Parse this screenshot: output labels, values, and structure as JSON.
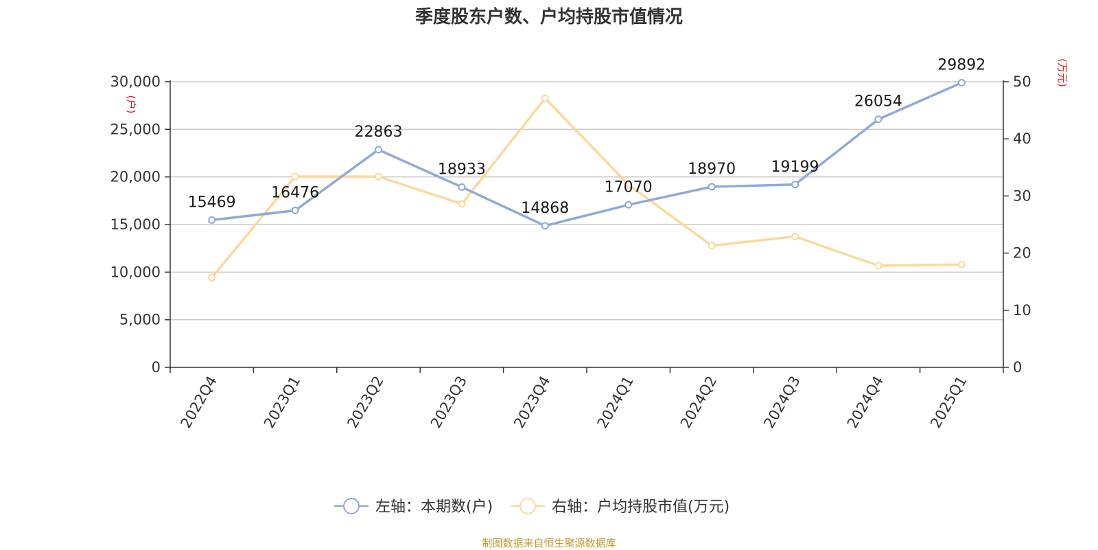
{
  "chart_data": {
    "type": "line",
    "title": "季度股东户数、户均持股市值情况",
    "categories": [
      "2022Q4",
      "2023Q1",
      "2023Q2",
      "2023Q3",
      "2023Q4",
      "2024Q1",
      "2024Q2",
      "2024Q3",
      "2024Q4",
      "2025Q1"
    ],
    "left_axis": {
      "unit": "(户)",
      "ylim": [
        0,
        30000
      ],
      "ticks": [
        0,
        5000,
        10000,
        15000,
        20000,
        25000,
        30000
      ],
      "tick_labels": [
        "0",
        "5,000",
        "10,000",
        "15,000",
        "20,000",
        "25,000",
        "30,000"
      ]
    },
    "right_axis": {
      "unit": "(万元)",
      "ylim": [
        0,
        50
      ],
      "ticks": [
        0,
        10,
        20,
        30,
        40,
        50
      ],
      "tick_labels": [
        "0",
        "10",
        "20",
        "30",
        "40",
        "50"
      ]
    },
    "series": [
      {
        "name": "左轴：本期数(户)",
        "axis": "left",
        "color": "#8eaad8",
        "values": [
          15469,
          16476,
          22863,
          18933,
          14868,
          17070,
          18970,
          19199,
          26054,
          29892
        ],
        "labels": [
          "15469",
          "16476",
          "22863",
          "18933",
          "14868",
          "17070",
          "18970",
          "19199",
          "26054",
          "29892"
        ]
      },
      {
        "name": "右轴：户均持股市值(万元)",
        "axis": "right",
        "color": "#fcd89a",
        "values": [
          15.7,
          33.4,
          33.4,
          28.6,
          47.1,
          32.0,
          21.3,
          22.9,
          17.8,
          18.0
        ]
      }
    ],
    "grid": true,
    "legend_position": "bottom-center"
  },
  "source_note": "制图数据来自恒生聚源数据库"
}
